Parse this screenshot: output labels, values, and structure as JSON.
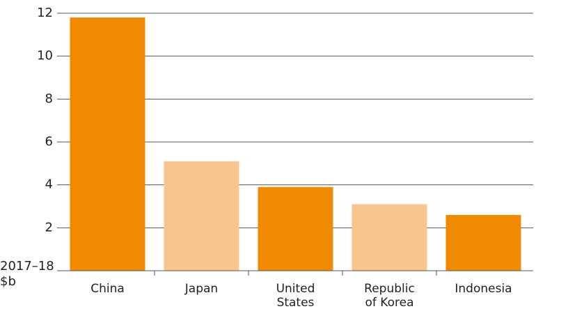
{
  "chart_data": {
    "type": "bar",
    "y_label": "2017–18\n$b",
    "categories": [
      "China",
      "Japan",
      "United\nStates",
      "Republic\nof Korea",
      "Indonesia"
    ],
    "values": [
      11.8,
      5.1,
      3.9,
      3.1,
      2.6
    ],
    "colors": [
      "#f08a00",
      "#f9c58e",
      "#f08a00",
      "#f9c58e",
      "#f08a00"
    ],
    "ylim": [
      0,
      12
    ],
    "yticks": [
      2,
      4,
      6,
      8,
      10,
      12
    ],
    "grid": true
  }
}
